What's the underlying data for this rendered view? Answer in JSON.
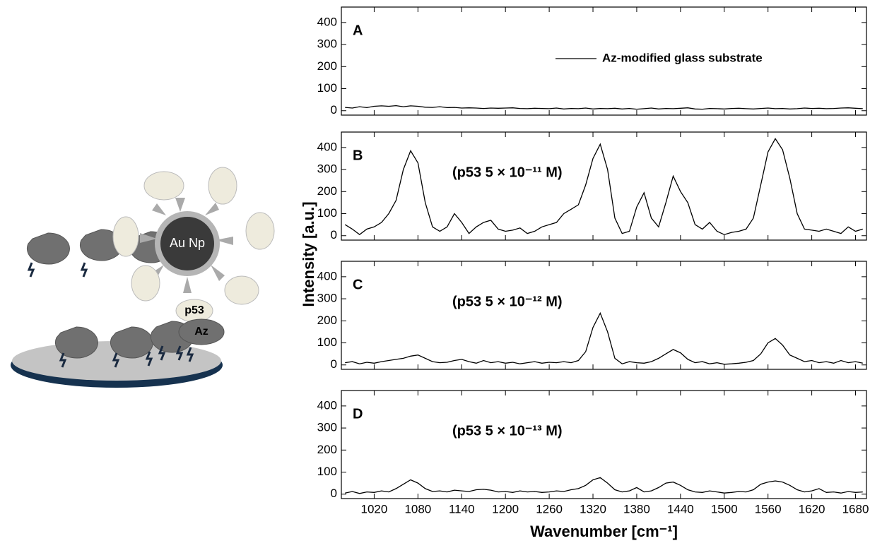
{
  "figure": {
    "ylabel": "Intensity [a.u.]"
  },
  "diagram": {
    "au_np": "Au Np",
    "p53": "p53",
    "az": "Az"
  },
  "chart_data": [
    {
      "type": "line",
      "panel_label": "A",
      "legend": "upper right",
      "xtick_labels": false,
      "xlim": [
        975,
        1695
      ],
      "ylim": [
        -20,
        470
      ],
      "xticks": [
        1020,
        1080,
        1140,
        1200,
        1260,
        1320,
        1380,
        1440,
        1500,
        1560,
        1620,
        1680
      ],
      "yticks": [
        0,
        100,
        200,
        300,
        400
      ],
      "x": [
        980,
        990,
        1000,
        1010,
        1020,
        1030,
        1040,
        1050,
        1060,
        1070,
        1080,
        1090,
        1100,
        1110,
        1120,
        1130,
        1140,
        1150,
        1160,
        1170,
        1180,
        1190,
        1200,
        1210,
        1220,
        1230,
        1240,
        1250,
        1260,
        1270,
        1280,
        1290,
        1300,
        1310,
        1320,
        1330,
        1340,
        1350,
        1360,
        1370,
        1380,
        1390,
        1400,
        1410,
        1420,
        1430,
        1440,
        1450,
        1460,
        1470,
        1480,
        1490,
        1500,
        1510,
        1520,
        1530,
        1540,
        1550,
        1560,
        1570,
        1580,
        1590,
        1600,
        1610,
        1620,
        1630,
        1640,
        1650,
        1660,
        1670,
        1680,
        1690
      ],
      "series": [
        {
          "name": "Az-modified glass substrate",
          "color": "#000000",
          "values": [
            15,
            12,
            18,
            14,
            20,
            22,
            20,
            23,
            18,
            22,
            20,
            16,
            15,
            18,
            14,
            15,
            12,
            13,
            12,
            10,
            12,
            11,
            12,
            13,
            10,
            9,
            11,
            10,
            9,
            12,
            8,
            10,
            9,
            12,
            8,
            10,
            9,
            11,
            8,
            10,
            7,
            9,
            12,
            8,
            10,
            9,
            11,
            13,
            8,
            7,
            10,
            9,
            8,
            10,
            11,
            9,
            8,
            10,
            12,
            9,
            10,
            8,
            9,
            12,
            10,
            11,
            9,
            10,
            12,
            13,
            11,
            9
          ]
        }
      ]
    },
    {
      "type": "line",
      "panel_label": "B",
      "annotation": "(p53 5 × 10⁻¹¹ M)",
      "xtick_labels": false,
      "xlim": [
        975,
        1695
      ],
      "ylim": [
        -20,
        470
      ],
      "xticks": [
        1020,
        1080,
        1140,
        1200,
        1260,
        1320,
        1380,
        1440,
        1500,
        1560,
        1620,
        1680
      ],
      "yticks": [
        0,
        100,
        200,
        300,
        400
      ],
      "x": [
        980,
        990,
        1000,
        1010,
        1020,
        1030,
        1040,
        1050,
        1060,
        1070,
        1080,
        1090,
        1100,
        1110,
        1120,
        1130,
        1140,
        1150,
        1160,
        1170,
        1180,
        1190,
        1200,
        1210,
        1220,
        1230,
        1240,
        1250,
        1260,
        1270,
        1280,
        1290,
        1300,
        1310,
        1320,
        1330,
        1340,
        1350,
        1360,
        1370,
        1380,
        1390,
        1400,
        1410,
        1420,
        1430,
        1440,
        1450,
        1460,
        1470,
        1480,
        1490,
        1500,
        1510,
        1520,
        1530,
        1540,
        1550,
        1560,
        1570,
        1580,
        1590,
        1600,
        1610,
        1620,
        1630,
        1640,
        1650,
        1660,
        1670,
        1680,
        1690
      ],
      "series": [
        {
          "name": "p53 5e-11",
          "color": "#000000",
          "values": [
            50,
            30,
            5,
            30,
            40,
            60,
            100,
            160,
            300,
            385,
            330,
            150,
            40,
            20,
            40,
            100,
            60,
            10,
            40,
            60,
            70,
            30,
            20,
            25,
            35,
            10,
            20,
            40,
            50,
            60,
            100,
            120,
            140,
            230,
            350,
            415,
            300,
            80,
            10,
            20,
            130,
            195,
            80,
            40,
            150,
            270,
            200,
            150,
            50,
            30,
            60,
            20,
            5,
            15,
            20,
            30,
            80,
            230,
            380,
            440,
            390,
            260,
            100,
            30,
            25,
            20,
            30,
            20,
            10,
            40,
            20,
            30
          ]
        }
      ]
    },
    {
      "type": "line",
      "panel_label": "C",
      "annotation": "(p53 5 × 10⁻¹² M)",
      "xtick_labels": false,
      "xlim": [
        975,
        1695
      ],
      "ylim": [
        -20,
        470
      ],
      "xticks": [
        1020,
        1080,
        1140,
        1200,
        1260,
        1320,
        1380,
        1440,
        1500,
        1560,
        1620,
        1680
      ],
      "yticks": [
        0,
        100,
        200,
        300,
        400
      ],
      "x": [
        980,
        990,
        1000,
        1010,
        1020,
        1030,
        1040,
        1050,
        1060,
        1070,
        1080,
        1090,
        1100,
        1110,
        1120,
        1130,
        1140,
        1150,
        1160,
        1170,
        1180,
        1190,
        1200,
        1210,
        1220,
        1230,
        1240,
        1250,
        1260,
        1270,
        1280,
        1290,
        1300,
        1310,
        1320,
        1330,
        1340,
        1350,
        1360,
        1370,
        1380,
        1390,
        1400,
        1410,
        1420,
        1430,
        1440,
        1450,
        1460,
        1470,
        1480,
        1490,
        1500,
        1510,
        1520,
        1530,
        1540,
        1550,
        1560,
        1570,
        1580,
        1590,
        1600,
        1610,
        1620,
        1630,
        1640,
        1650,
        1660,
        1670,
        1680,
        1690
      ],
      "series": [
        {
          "name": "p53 5e-12",
          "color": "#000000",
          "values": [
            10,
            15,
            5,
            12,
            8,
            15,
            20,
            25,
            30,
            40,
            45,
            30,
            15,
            10,
            12,
            20,
            25,
            15,
            8,
            20,
            10,
            15,
            8,
            12,
            5,
            10,
            15,
            8,
            12,
            10,
            15,
            10,
            20,
            60,
            170,
            235,
            150,
            30,
            5,
            15,
            10,
            8,
            15,
            30,
            50,
            70,
            55,
            25,
            10,
            15,
            5,
            10,
            3,
            5,
            8,
            12,
            20,
            50,
            100,
            120,
            90,
            45,
            30,
            15,
            20,
            10,
            15,
            8,
            20,
            10,
            15,
            8
          ]
        }
      ]
    },
    {
      "type": "line",
      "panel_label": "D",
      "annotation": "(p53 5 × 10⁻¹³ M)",
      "xtick_labels": true,
      "xlabel": "Wavenumber [cm⁻¹]",
      "xlim": [
        975,
        1695
      ],
      "ylim": [
        -20,
        470
      ],
      "xticks": [
        1020,
        1080,
        1140,
        1200,
        1260,
        1320,
        1380,
        1440,
        1500,
        1560,
        1620,
        1680
      ],
      "yticks": [
        0,
        100,
        200,
        300,
        400
      ],
      "x": [
        980,
        990,
        1000,
        1010,
        1020,
        1030,
        1040,
        1050,
        1060,
        1070,
        1080,
        1090,
        1100,
        1110,
        1120,
        1130,
        1140,
        1150,
        1160,
        1170,
        1180,
        1190,
        1200,
        1210,
        1220,
        1230,
        1240,
        1250,
        1260,
        1270,
        1280,
        1290,
        1300,
        1310,
        1320,
        1330,
        1340,
        1350,
        1360,
        1370,
        1380,
        1390,
        1400,
        1410,
        1420,
        1430,
        1440,
        1450,
        1460,
        1470,
        1480,
        1490,
        1500,
        1510,
        1520,
        1530,
        1540,
        1550,
        1560,
        1570,
        1580,
        1590,
        1600,
        1610,
        1620,
        1630,
        1640,
        1650,
        1660,
        1670,
        1680,
        1690
      ],
      "series": [
        {
          "name": "p53 5e-13",
          "color": "#000000",
          "values": [
            5,
            12,
            3,
            10,
            8,
            15,
            10,
            25,
            45,
            65,
            50,
            25,
            12,
            15,
            10,
            18,
            15,
            12,
            20,
            22,
            18,
            10,
            12,
            8,
            15,
            10,
            12,
            8,
            10,
            15,
            12,
            20,
            25,
            40,
            65,
            75,
            50,
            20,
            10,
            15,
            30,
            10,
            15,
            30,
            50,
            55,
            40,
            20,
            10,
            8,
            15,
            10,
            5,
            8,
            12,
            10,
            20,
            45,
            55,
            60,
            55,
            40,
            20,
            10,
            15,
            25,
            8,
            10,
            5,
            12,
            8,
            10
          ]
        }
      ]
    }
  ]
}
